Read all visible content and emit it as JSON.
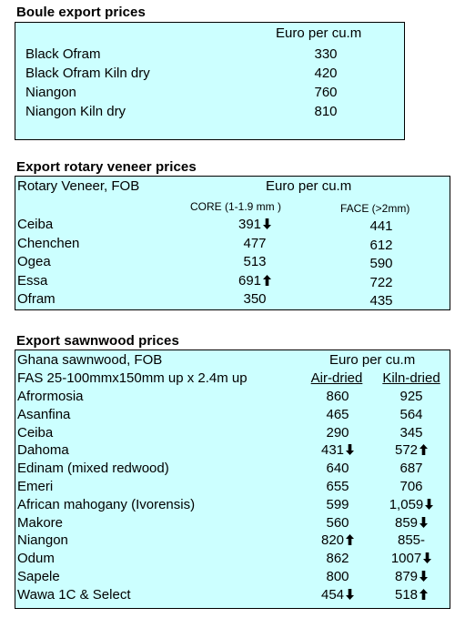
{
  "boule": {
    "title": "Boule export prices",
    "unit": "Euro per cu.m",
    "rows": [
      {
        "name": "Black Ofram",
        "value": "330"
      },
      {
        "name": "Black Ofram  Kiln dry",
        "value": "420"
      },
      {
        "name": "Niangon",
        "value": "760"
      },
      {
        "name": "Niangon Kiln dry",
        "value": "810"
      }
    ]
  },
  "veneer": {
    "title": "Export rotary veneer prices",
    "header": "Rotary Veneer,  FOB",
    "unit": "Euro  per cu.m",
    "col_core": "CORE (1-1.9 mm )",
    "col_face": "FACE (>2mm)",
    "rows": [
      {
        "name": "Ceiba",
        "core": "391",
        "core_arrow": "down",
        "face": "441"
      },
      {
        "name": "Chenchen",
        "core": "477",
        "face": "612"
      },
      {
        "name": "Ogea",
        "core": "513",
        "face": "590"
      },
      {
        "name": "Essa",
        "core": "691",
        "core_arrow": "up",
        "face": "722"
      },
      {
        "name": "Ofram",
        "core": "350",
        "face": "435"
      }
    ]
  },
  "sawn": {
    "title": "Export sawnwood prices",
    "header": "Ghana sawnwood, FOB",
    "unit": "Euro per cu.m",
    "subheader": "FAS 25-100mmx150mm up x 2.4m up",
    "col_air": "Air-dried",
    "col_kiln": "Kiln-dried",
    "rows": [
      {
        "name": "Afrormosia",
        "air": "860",
        "kiln": "925"
      },
      {
        "name": "Asanfina",
        "air": "465",
        "kiln": "564"
      },
      {
        "name": "Ceiba",
        "air": "290",
        "kiln": "345"
      },
      {
        "name": "Dahoma",
        "air": "431",
        "air_arrow": "down",
        "kiln": "572",
        "kiln_arrow": "up"
      },
      {
        "name": "Edinam (mixed redwood)",
        "air": "640",
        "kiln": "687"
      },
      {
        "name": "Emeri",
        "air": "655",
        "kiln": "706"
      },
      {
        "name": "African mahogany (Ivorensis)",
        "air": "599",
        "kiln": "1,059",
        "kiln_arrow": "down"
      },
      {
        "name": "Makore",
        "air": "560",
        "kiln": "859",
        "kiln_arrow": "down"
      },
      {
        "name": "Niangon",
        "air": "820",
        "air_arrow": "up",
        "kiln": "855-"
      },
      {
        "name": "Odum",
        "air": "862",
        "kiln": "1007",
        "kiln_arrow": "down"
      },
      {
        "name": "Sapele",
        "air": "800",
        "kiln": "879",
        "kiln_arrow": "down"
      },
      {
        "name": "Wawa 1C & Select",
        "air": "454",
        "air_arrow": "down",
        "kiln": "518",
        "kiln_arrow": "up"
      }
    ]
  }
}
